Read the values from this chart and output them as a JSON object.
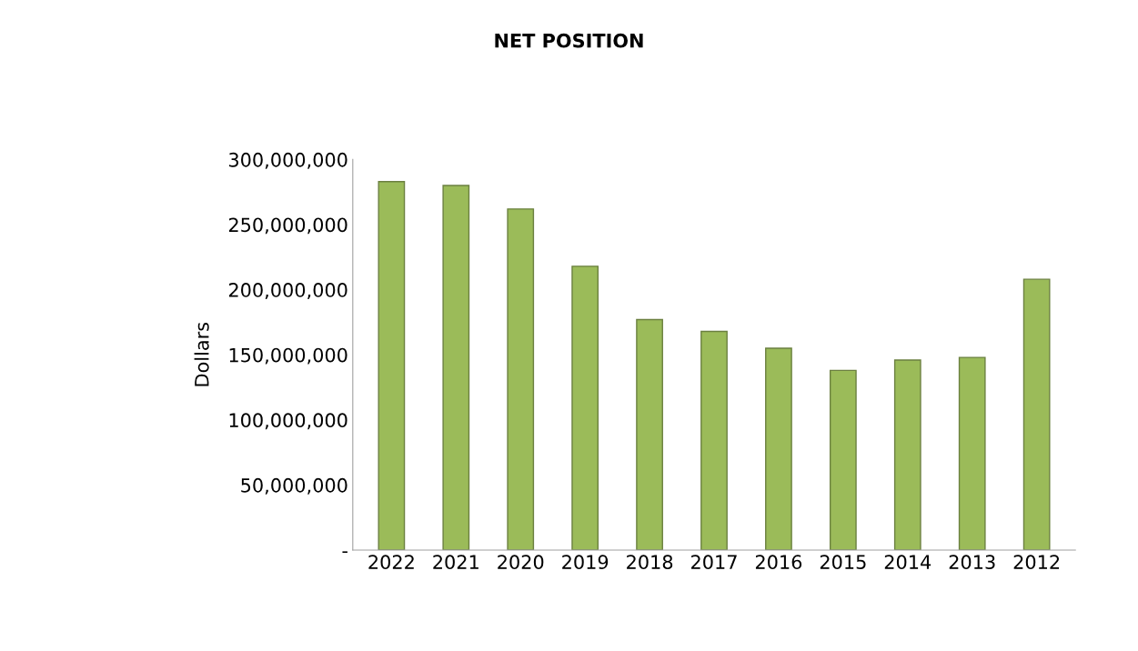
{
  "chart_data": {
    "type": "bar",
    "title": "NET POSITION",
    "ylabel": "Dollars",
    "categories": [
      "2022",
      "2021",
      "2020",
      "2019",
      "2018",
      "2017",
      "2016",
      "2015",
      "2014",
      "2013",
      "2012"
    ],
    "values": [
      283000000,
      280000000,
      262000000,
      218000000,
      177000000,
      168000000,
      155000000,
      138000000,
      146000000,
      148000000,
      208000000
    ],
    "color": "#9bbb59",
    "ylim": [
      0,
      300000000
    ],
    "yticks": [
      {
        "value": 0,
        "label": "-"
      },
      {
        "value": 50000000,
        "label": "50,000,000"
      },
      {
        "value": 100000000,
        "label": "100,000,000"
      },
      {
        "value": 150000000,
        "label": "150,000,000"
      },
      {
        "value": 200000000,
        "label": "200,000,000"
      },
      {
        "value": 250000000,
        "label": "250,000,000"
      },
      {
        "value": 300000000,
        "label": "300,000,000"
      }
    ],
    "grid": false
  }
}
